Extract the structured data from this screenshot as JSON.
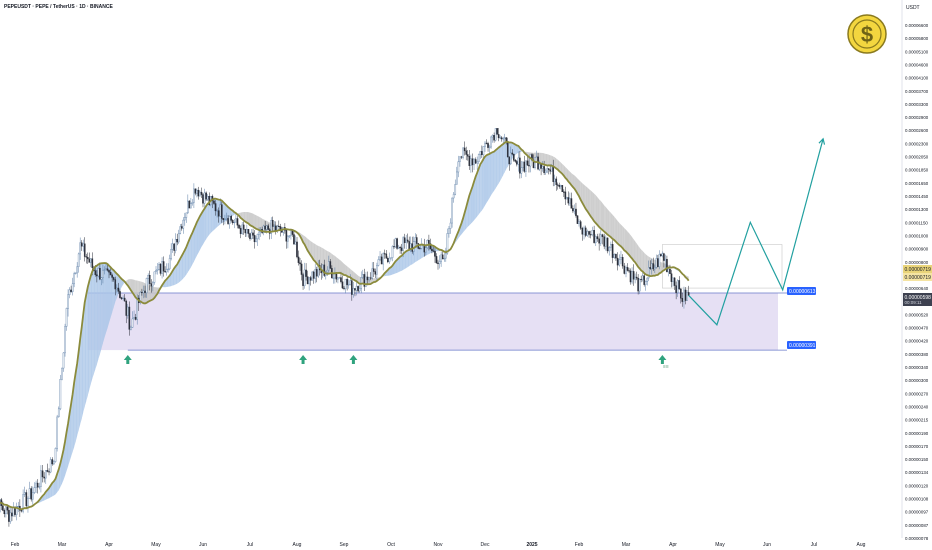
{
  "header": {
    "title": "PEPEUSDT · PEPE / TetherUS · 1D · BINANCE",
    "currency": "USDT"
  },
  "colors": {
    "up_candle": "#5d7fa7",
    "down_candle": "#2a2e39",
    "baseline": "#8b8b3c",
    "cloud_bull": "#a9c6e8",
    "cloud_bear": "#c6c6c6",
    "zone_fill": "#e2daf2",
    "zone_line": "#6878c8",
    "projection": "#22a0a0",
    "arrow": "#2fa37e",
    "label_blue": "#2962ff",
    "label_price": "#f5e4a3"
  },
  "chart_data": {
    "type": "candlestick",
    "symbol": "PEPEUSDT",
    "timeframe": "1D",
    "y_scale": "log",
    "y_ticks": [
      "0.00006600",
      "0.00005800",
      "0.00005100",
      "0.00004600",
      "0.00004100",
      "0.00003700",
      "0.00003300",
      "0.00002900",
      "0.00002600",
      "0.00002300",
      "0.00002050",
      "0.00001850",
      "0.00001650",
      "0.00001450",
      "0.00001300",
      "0.00001150",
      "0.00001000",
      "0.00000900",
      "0.00000800",
      "0.00000719",
      "0.00000640",
      "0.00000570",
      "0.00000520",
      "0.00000470",
      "0.00000420",
      "0.00000380",
      "0.00000340",
      "0.00000300",
      "0.00000270",
      "0.00000240",
      "0.00000215",
      "0.00000190",
      "0.00000170",
      "0.00000150",
      "0.00000134",
      "0.00000120",
      "0.00000108",
      "0.00000097",
      "0.00000087",
      "0.00000078"
    ],
    "x_ticks": [
      "Feb",
      "Mar",
      "Apr",
      "May",
      "Jun",
      "Jul",
      "Aug",
      "Sep",
      "Oct",
      "Nov",
      "Dec",
      "2025",
      "Feb",
      "Mar",
      "Apr",
      "May",
      "Jun",
      "Jul",
      "Aug"
    ],
    "price_labels": {
      "current_high": "0.00000719",
      "current_low": "0.00000719",
      "last_price": "0.00000598",
      "countdown": "00:09:11",
      "zone_top": "0.00000613",
      "zone_bottom": "0.00000391"
    },
    "support_zone": {
      "top": 6.13e-06,
      "bottom": 3.91e-06
    },
    "bottom_marker": "≡≡",
    "price_path": [
      [
        "2024-01-15",
        1.1e-06
      ],
      [
        "2024-01-28",
        9.5e-07
      ],
      [
        "2024-02-10",
        1.1e-06
      ],
      [
        "2024-02-25",
        1.5e-06
      ],
      [
        "2024-03-04",
        5.5e-06
      ],
      [
        "2024-03-13",
        9.2e-06
      ],
      [
        "2024-03-22",
        7.5e-06
      ],
      [
        "2024-04-05",
        6.8e-06
      ],
      [
        "2024-04-15",
        4.8e-06
      ],
      [
        "2024-04-25",
        6.7e-06
      ],
      [
        "2024-05-10",
        8.2e-06
      ],
      [
        "2024-05-20",
        1.25e-05
      ],
      [
        "2024-05-27",
        1.58e-05
      ],
      [
        "2024-06-05",
        1.38e-05
      ],
      [
        "2024-06-18",
        1.2e-05
      ],
      [
        "2024-07-03",
        9.5e-06
      ],
      [
        "2024-07-15",
        1.1e-05
      ],
      [
        "2024-07-30",
        9.8e-06
      ],
      [
        "2024-08-05",
        7e-06
      ],
      [
        "2024-08-22",
        7.6e-06
      ],
      [
        "2024-09-06",
        6.4e-06
      ],
      [
        "2024-09-20",
        7.4e-06
      ],
      [
        "2024-10-05",
        9.3e-06
      ],
      [
        "2024-10-25",
        9.2e-06
      ],
      [
        "2024-11-05",
        7.8e-06
      ],
      [
        "2024-11-14",
        2.1e-05
      ],
      [
        "2024-11-25",
        2e-05
      ],
      [
        "2024-12-09",
        2.65e-05
      ],
      [
        "2024-12-20",
        1.9e-05
      ],
      [
        "2025-01-06",
        2e-05
      ],
      [
        "2025-01-20",
        1.65e-05
      ],
      [
        "2025-02-03",
        1.05e-05
      ],
      [
        "2025-02-17",
        9.5e-06
      ],
      [
        "2025-03-10",
        6.5e-06
      ],
      [
        "2025-03-25",
        8.5e-06
      ],
      [
        "2025-04-07",
        5.9e-06
      ],
      [
        "2025-04-11",
        6e-06
      ]
    ],
    "projection_path": [
      [
        "2025-04-11",
        6e-06
      ],
      [
        "2025-04-29",
        4.8e-06
      ],
      [
        "2025-05-21",
        1.15e-05
      ],
      [
        "2025-06-11",
        6.3e-06
      ],
      [
        "2025-07-07",
        2.4e-05
      ]
    ],
    "up_arrows_dates": [
      "2024-04-13",
      "2024-08-05",
      "2024-09-07",
      "2025-03-25"
    ]
  },
  "logo": {
    "symbol": "$",
    "name": "dollar-coin-logo"
  }
}
